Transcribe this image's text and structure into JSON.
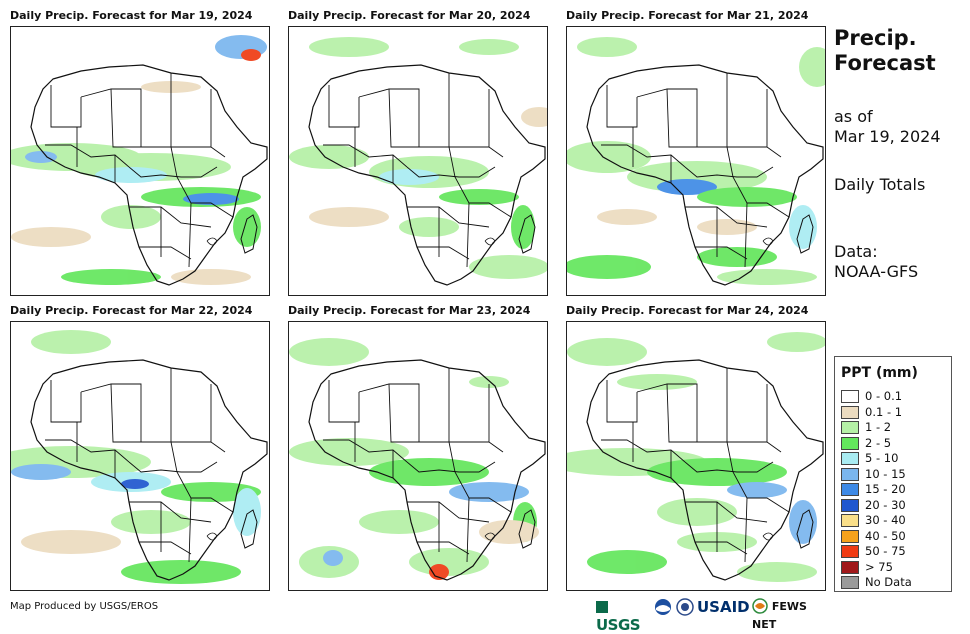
{
  "panels": [
    {
      "title": "Daily Precip. Forecast for Mar 19, 2024"
    },
    {
      "title": "Daily Precip. Forecast for Mar 20, 2024"
    },
    {
      "title": "Daily Precip. Forecast for Mar 21, 2024"
    },
    {
      "title": "Daily Precip. Forecast for Mar 22, 2024"
    },
    {
      "title": "Daily Precip. Forecast for Mar 23, 2024"
    },
    {
      "title": "Daily Precip. Forecast for Mar 24, 2024"
    }
  ],
  "side": {
    "title_line1": "Precip.",
    "title_line2": "Forecast",
    "asof_line1": "as of",
    "asof_line2": "Mar 19, 2024",
    "totals": "Daily Totals",
    "data_line1": "Data:",
    "data_line2": "NOAA-GFS"
  },
  "legend": {
    "title": "PPT (mm)",
    "items": [
      {
        "label": "0 - 0.1",
        "color": "#ffffff"
      },
      {
        "label": "0.1 - 1",
        "color": "#ecdcc0"
      },
      {
        "label": "1 - 2",
        "color": "#b5f0a6"
      },
      {
        "label": "2 - 5",
        "color": "#63e65c"
      },
      {
        "label": "5 - 10",
        "color": "#a9ecf2"
      },
      {
        "label": "10 - 15",
        "color": "#7ab6ee"
      },
      {
        "label": "15 - 20",
        "color": "#3e8ae6"
      },
      {
        "label": "20 - 30",
        "color": "#1f56cf"
      },
      {
        "label": "30 - 40",
        "color": "#fbe08a"
      },
      {
        "label": "40 - 50",
        "color": "#f6a21c"
      },
      {
        "label": "50 - 75",
        "color": "#ef3b13"
      },
      {
        "label": "> 75",
        "color": "#a0181a"
      },
      {
        "label": "No Data",
        "color": "#9a9a9a"
      }
    ]
  },
  "footer": {
    "credit": "Map Produced by USGS/EROS"
  },
  "logos": {
    "usgs": "USGS",
    "usaid": "USAID",
    "fewsnet": "FEWS NET"
  }
}
